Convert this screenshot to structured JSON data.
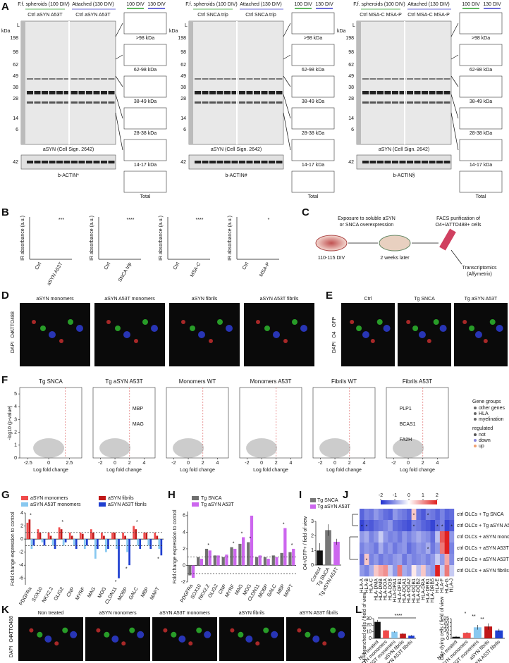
{
  "panel_labels": [
    "A",
    "B",
    "C",
    "D",
    "E",
    "F",
    "G",
    "H",
    "I",
    "J",
    "K",
    "L"
  ],
  "panel_a": {
    "groups": [
      {
        "header_left": "F.f. spheroids (100 DIV)",
        "header_right": "Attached (130 DIV)",
        "conditions_left": "Ctrl aSYN A53T",
        "conditions_right": "Ctrl aSYN A53T",
        "antibody": "aSYN (Cell Sign. 2642)",
        "loading": "b-ACTIN*"
      },
      {
        "header_left": "F.f. spheroids (100 DIV)",
        "header_right": "Attached (130 DIV)",
        "conditions_left": "Ctrl SNCA trip",
        "conditions_right": "Ctrl SNCA trip",
        "antibody": "aSYN (Cell Sign. 2642)",
        "loading": "b-ACTIN#"
      },
      {
        "header_left": "F.f. spheroids (100 DIV)",
        "header_right": "Attached (130 DIV)",
        "conditions_left": "Ctrl MSA-C MSA-P",
        "conditions_right": "Ctrl MSA-C MSA-P",
        "antibody": "aSYN (Cell Sign. 2642)",
        "loading": "b-ACTIN§"
      }
    ],
    "ladder": "L",
    "kda": "kDa",
    "markers": [
      198,
      98,
      62,
      49,
      38,
      28,
      14,
      6
    ],
    "actin_marker": 42,
    "fractions": [
      ">98 kDa",
      "62-98 kDa",
      "38-49 kDa",
      "28-38 kDa",
      "14-17 kDa",
      "Total"
    ],
    "legend": [
      {
        "name": "100 DIV",
        "color": "#2a9d2a"
      },
      {
        "name": "130 DIV",
        "color": "#3a3acc"
      }
    ]
  },
  "panel_b": {
    "ylabel": "IR absorbance (a.u.)",
    "plots": [
      {
        "categories": [
          "Ctrl",
          "aSYN A53T"
        ],
        "colors": [
          "#111111",
          "#e03030"
        ],
        "significance": "***"
      },
      {
        "categories": [
          "Ctrl",
          "SNCA trip"
        ],
        "colors": [
          "#111111",
          "#f08c1e"
        ],
        "significance": "****"
      },
      {
        "categories": [
          "Ctrl",
          "MSA-C"
        ],
        "colors": [
          "#111111",
          "#a040e0"
        ],
        "significance": "****"
      },
      {
        "categories": [
          "Ctrl",
          "MSA-P"
        ],
        "colors": [
          "#111111",
          "#1aa39a"
        ],
        "significance": "*"
      }
    ]
  },
  "panel_c": {
    "step1": [
      "Exposure to soluble aSYN",
      "or SNCA overexpression"
    ],
    "step2": [
      "FACS purification of",
      "O4+/ATTO488+ cells"
    ],
    "time1": "110-115 DIV",
    "time2": "2 weeks later",
    "output": [
      "Transcriptomics",
      "(Affymetrix)"
    ]
  },
  "panel_d": {
    "channels": [
      "DAPI",
      "O4",
      "ATTO488"
    ],
    "titles": [
      "aSYN monomers",
      "aSYN A53T monomers",
      "aSYN fibrils",
      "aSYN A53T fibrils"
    ]
  },
  "panel_e": {
    "channels": [
      "DAPI",
      "O4",
      "GFP"
    ],
    "titles": [
      "Ctrl",
      "Tg SNCA",
      "Tg aSYN A53T"
    ]
  },
  "panel_f": {
    "xlabel": "Log fold change",
    "ylabel": "-log10 (p-value)",
    "ylim": [
      0,
      5.5
    ],
    "yticks": [
      0,
      1,
      2,
      3,
      4,
      5
    ],
    "plots": [
      {
        "title": "Tg SNCA",
        "xlim": [
          -3.5,
          4
        ],
        "xticks": [
          -2.5,
          0,
          2.5
        ],
        "genes": []
      },
      {
        "title": "Tg aSYN A53T",
        "xlim": [
          -3,
          5.5
        ],
        "xticks": [
          -2,
          0,
          2,
          4
        ],
        "genes": [
          "MBP",
          "MAG"
        ]
      },
      {
        "title": "Monomers WT",
        "xlim": [
          -3,
          5.5
        ],
        "xticks": [
          -2,
          0,
          2,
          4
        ],
        "genes": []
      },
      {
        "title": "Monomers A53T",
        "xlim": [
          -3,
          5.5
        ],
        "xticks": [
          -2,
          0,
          2,
          4
        ],
        "genes": []
      },
      {
        "title": "Fibrils WT",
        "xlim": [
          -3,
          5.5
        ],
        "xticks": [
          -2,
          0,
          2,
          4
        ],
        "genes": []
      },
      {
        "title": "Fibrils A53T",
        "xlim": [
          -3,
          5.5
        ],
        "xticks": [
          -2,
          0,
          2,
          4
        ],
        "genes": [
          "PLP1",
          "BCAS1",
          "FA2H"
        ]
      }
    ],
    "legend": {
      "groups_title": "Gene groups",
      "groups": [
        "other genes",
        "HLA",
        "myelination"
      ],
      "reg_title": "regulated",
      "reg": [
        {
          "name": "not",
          "color": "#555555"
        },
        {
          "name": "down",
          "color": "#8888dd"
        },
        {
          "name": "up",
          "color": "#f0a070"
        }
      ]
    }
  },
  "panel_k": {
    "channels": [
      "DAPI",
      "O4",
      "ATTO488"
    ],
    "titles": [
      "Non treated",
      "aSYN monomers",
      "aSYN A53T monomers",
      "aSYN fibrils",
      "aSYN A53T fibrils"
    ]
  },
  "chart_data": [
    {
      "type": "bar",
      "ylabel": "Fold change expression to control",
      "ylim": [
        -7,
        4
      ],
      "yticks": [
        -6,
        -4,
        -2,
        0,
        2,
        4
      ],
      "categories": [
        "PDGFRa",
        "SOX10",
        "NKX2.2",
        "OLIG2",
        "CNP",
        "MYRF",
        "MAG",
        "MOG",
        "CLDN11",
        "MOBP",
        "GALC",
        "MBP",
        "MAPT"
      ],
      "series": [
        {
          "name": "aSYN monomers",
          "color": "#f04a4a",
          "values": [
            2.5,
            1.5,
            1,
            1.8,
            1,
            1,
            1.5,
            1,
            1,
            1,
            2,
            1,
            1
          ]
        },
        {
          "name": "aSYN fibrils",
          "color": "#c01818",
          "values": [
            3,
            1,
            0.5,
            1.5,
            0.5,
            0.8,
            1,
            0.5,
            1,
            0.5,
            1.5,
            1,
            0.5
          ]
        },
        {
          "name": "aSYN A53T monomers",
          "color": "#88c8f0",
          "values": [
            -1.5,
            -0.5,
            -1,
            -1,
            -1,
            -1.5,
            -3,
            -2,
            -1.5,
            -2,
            -1,
            -1,
            -1.5
          ]
        },
        {
          "name": "aSYN A53T fibrils",
          "color": "#1f3fd0",
          "values": [
            -1,
            -1,
            -1.5,
            -0.5,
            -1.5,
            -1,
            -1.5,
            -1.5,
            -6,
            -4,
            -1.5,
            -1.5,
            -2.5
          ]
        }
      ],
      "annotations": [
        {
          "category": 0,
          "value": 3.6,
          "text": "*"
        },
        {
          "category": 3,
          "value": 2.6,
          "text": "*"
        },
        {
          "category": 8,
          "value": -6.6,
          "text": "*"
        },
        {
          "category": 9,
          "value": -4.6,
          "text": "*"
        },
        {
          "category": 10,
          "value": 2.6,
          "text": "*"
        },
        {
          "category": 12,
          "value": -3.1,
          "text": "*"
        }
      ]
    },
    {
      "type": "bar",
      "ylabel": "Fold change expression to control",
      "ylim": [
        -2,
        6.5
      ],
      "yticks": [
        -2,
        0,
        2,
        4,
        6
      ],
      "categories": [
        "PDGFRa",
        "SOX10",
        "NKX2.2",
        "OLIG2",
        "CNP",
        "MYRF",
        "MAG",
        "MOG",
        "CLDN11",
        "MOBP",
        "GALC",
        "MBP",
        "MAPT"
      ],
      "series": [
        {
          "name": "Tg SNCA",
          "color": "#707070",
          "values": [
            -1.2,
            1,
            2,
            1.2,
            1,
            2.2,
            2.6,
            2.8,
            1,
            1,
            1.2,
            1.5,
            1.6
          ]
        },
        {
          "name": "Tg aSYN A53T",
          "color": "#cc66ee",
          "values": [
            -1.5,
            0.8,
            1.8,
            1.2,
            1.3,
            2,
            3.4,
            6,
            1.2,
            0.8,
            1,
            4.5,
            2
          ]
        }
      ],
      "annotations": [
        {
          "category": 2,
          "value": 2.4,
          "text": "*"
        },
        {
          "category": 5,
          "value": 2.6,
          "text": "*"
        },
        {
          "category": 6,
          "value": 3.8,
          "text": "*"
        },
        {
          "category": 7,
          "value": 3.2,
          "text": "*"
        },
        {
          "category": 11,
          "value": 4.9,
          "text": "*"
        },
        {
          "category": 12,
          "value": 2.4,
          "text": "*"
        }
      ]
    },
    {
      "type": "bar",
      "ylabel": "O4+/GFP+ / field of view",
      "ylim": [
        0,
        3
      ],
      "yticks": [
        0,
        1,
        2,
        3
      ],
      "categories": [
        "Control",
        "Tg SNCA",
        "Tg aSYN A53T"
      ],
      "values": [
        1,
        2.4,
        1.6
      ],
      "errors": [
        0.5,
        0.4,
        0.2
      ],
      "colors": [
        "#111111",
        "#777777",
        "#cc66ee"
      ],
      "legend": [
        {
          "name": "Tg SNCA",
          "color": "#777777"
        },
        {
          "name": "Tg aSYN A53T",
          "color": "#cc66ee"
        }
      ]
    },
    {
      "type": "heatmap",
      "x": [
        "HLA-A",
        "HLA-B",
        "HLA-C",
        "HLA-DMA",
        "HLA-DMB",
        "HLA-DOA",
        "HLA-DOB",
        "HLA-DPA1",
        "HLA-DPB1",
        "HLA-DQA1",
        "HLA-DQA2",
        "HLA-DQB1",
        "HLA-DQB2",
        "HLA-DRA",
        "HLA-DRB1",
        "HLA-DRB5",
        "HLA-E",
        "HLA-F",
        "HLA-G",
        "HLA-J"
      ],
      "y": [
        "ctrl OLCs + Tg SNCA",
        "ctrl OLCs + Tg aSYN A53T",
        "ctrl OLCs + aSYN monomers",
        "ctrl OLCs + aSYN A53T fibrils",
        "ctrl OLCs + aSYN A53T monomers",
        "ctrl OLCs + aSYN fibrils"
      ],
      "values": [
        [
          -1.5,
          -1.2,
          -1.3,
          -1,
          -1.2,
          -1.4,
          -1.5,
          -1,
          -1.2,
          -1.3,
          -1.5,
          0.5,
          -1.4,
          -1.6,
          -1.2,
          -1.3,
          -1.5,
          -1.2,
          -1.5,
          -1.4
        ],
        [
          -1.8,
          -1.5,
          -1.6,
          -1.4,
          -1.3,
          -1.2,
          -1,
          -1.4,
          -1.5,
          -1.6,
          -1.7,
          -1.2,
          -1.3,
          -1.5,
          -1.6,
          -1.8,
          -1.4,
          -1.2,
          -1.8,
          -1.6
        ],
        [
          -1,
          -0.8,
          -1.2,
          -1,
          -0.5,
          -1,
          -1.2,
          -1.1,
          -1.3,
          -1,
          -1.2,
          -1,
          -0.8,
          -1,
          -1.1,
          -1.4,
          -0.6,
          1.5,
          2,
          -1
        ],
        [
          -1.2,
          -1,
          -1.1,
          -1.3,
          -0.8,
          -1.2,
          -1,
          -1.3,
          -1.1,
          -1,
          -1.4,
          -1.2,
          -1,
          -1.1,
          -0.8,
          -1.3,
          -1,
          1.2,
          2,
          -1.2
        ],
        [
          -1.4,
          0.5,
          -1.2,
          -1,
          -1.3,
          -1.1,
          -1.2,
          -1,
          -0.9,
          -1.3,
          -1,
          -1.2,
          -1.1,
          -1,
          -1.2,
          -1,
          -0.5,
          -1,
          0.8,
          -1.1
        ],
        [
          -1,
          -1.2,
          -0.8,
          0.5,
          0.8,
          1,
          -0.5,
          -1,
          1.2,
          -0.8,
          -1,
          0.2,
          -0.6,
          0.5,
          -0.8,
          -1,
          2,
          -0.5,
          1.2,
          -0.5
        ]
      ],
      "zlim": [
        -2,
        2
      ],
      "zticks": [
        -2,
        -1,
        0,
        1,
        2
      ],
      "annotations": [
        {
          "row": 0,
          "col": 11,
          "text": "*"
        },
        {
          "row": 0,
          "col": 14,
          "text": "*"
        },
        {
          "row": 1,
          "col": 0,
          "text": "*"
        },
        {
          "row": 1,
          "col": 1,
          "text": "*"
        },
        {
          "row": 1,
          "col": 11,
          "text": "*"
        },
        {
          "row": 1,
          "col": 16,
          "text": "*"
        },
        {
          "row": 1,
          "col": 17,
          "text": "*"
        },
        {
          "row": 1,
          "col": 19,
          "text": "*"
        },
        {
          "row": 3,
          "col": 14,
          "text": "*"
        },
        {
          "row": 4,
          "col": 1,
          "text": "*"
        }
      ]
    },
    {
      "type": "bar",
      "ylabel": "O4+ branched cells / field of view",
      "ylim": [
        0,
        30
      ],
      "yticks": [
        0,
        10,
        20,
        30
      ],
      "categories": [
        "Non treated",
        "aSYN monomers",
        "aSYN A53T monomers",
        "aSYN fibrils",
        "aSYN A53T fibrils"
      ],
      "values": [
        25,
        12,
        10,
        7,
        4
      ],
      "errors": [
        3,
        1,
        1,
        1,
        1
      ],
      "colors": [
        "#111111",
        "#f04a4a",
        "#88c8f0",
        "#c01818",
        "#1f3fd0"
      ],
      "significance": "****"
    },
    {
      "type": "bar",
      "ylabel": "O4+ dying cells / field of view",
      "ylim": [
        0,
        25
      ],
      "yticks": [
        0,
        5,
        10,
        15,
        20,
        25
      ],
      "categories": [
        "Non treated",
        "aSYN monomers",
        "aSYN A53T monomers",
        "aSYN fibrils",
        "aSYN A53T fibrils"
      ],
      "values": [
        2,
        7,
        14,
        15,
        10
      ],
      "errors": [
        1,
        1,
        3,
        4,
        2
      ],
      "colors": [
        "#111111",
        "#f04a4a",
        "#88c8f0",
        "#c01818",
        "#1f3fd0"
      ],
      "significance": [
        "*",
        "**",
        "**"
      ]
    }
  ]
}
